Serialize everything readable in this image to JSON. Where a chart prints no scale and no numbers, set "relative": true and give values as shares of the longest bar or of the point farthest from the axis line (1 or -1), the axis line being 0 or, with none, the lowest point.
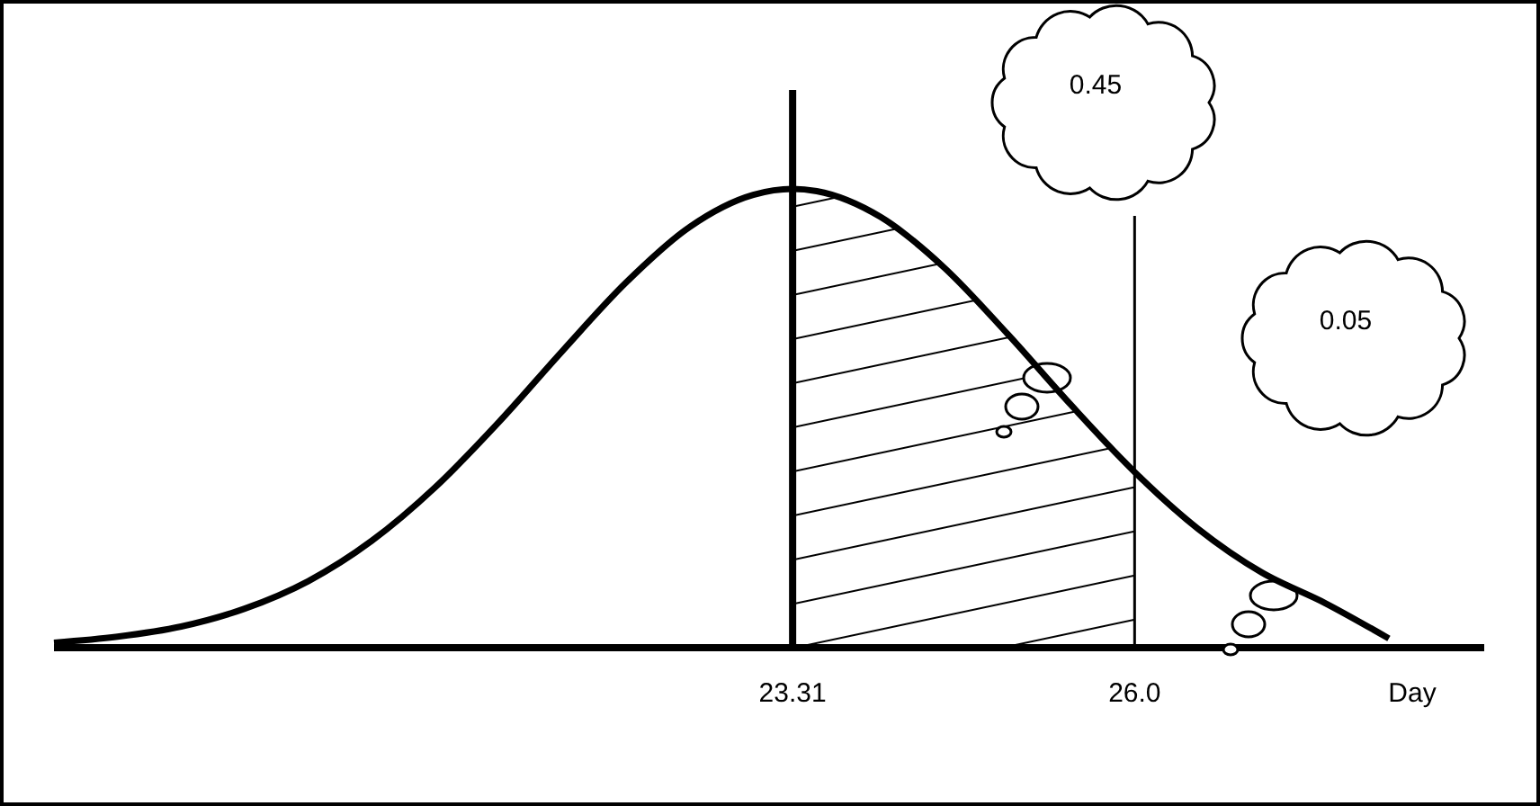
{
  "chart_data": {
    "type": "line",
    "relative": true,
    "xlabel": "Day",
    "tick_labels": "x",
    "line_style": "solid",
    "x": [
      17.5,
      18.0,
      18.5,
      19.0,
      19.5,
      20.0,
      20.5,
      21.0,
      21.5,
      22.0,
      22.5,
      23.0,
      23.31,
      23.5,
      24.0,
      24.5,
      25.0,
      25.5,
      26.0,
      26.5,
      27.0,
      27.5,
      28.0
    ],
    "values": [
      0.011,
      0.024,
      0.046,
      0.085,
      0.145,
      0.233,
      0.35,
      0.492,
      0.647,
      0.796,
      0.917,
      0.987,
      1,
      0.995,
      0.939,
      0.829,
      0.684,
      0.529,
      0.383,
      0.259,
      0.164,
      0.097,
      0.02
    ],
    "color": "#000000",
    "xlim": [
      17.5,
      28.75
    ],
    "xticks": [
      23.31,
      {
        "value": 26,
        "label": "26.0"
      }
    ],
    "ref_lines": [
      {
        "axis": "x",
        "value": 23.31
      },
      {
        "axis": "x",
        "value": 26
      }
    ],
    "bands": [
      {
        "axis": "x",
        "from": 23.31,
        "to": 26
      }
    ],
    "annotations": [
      "0.45",
      "0.05"
    ]
  }
}
